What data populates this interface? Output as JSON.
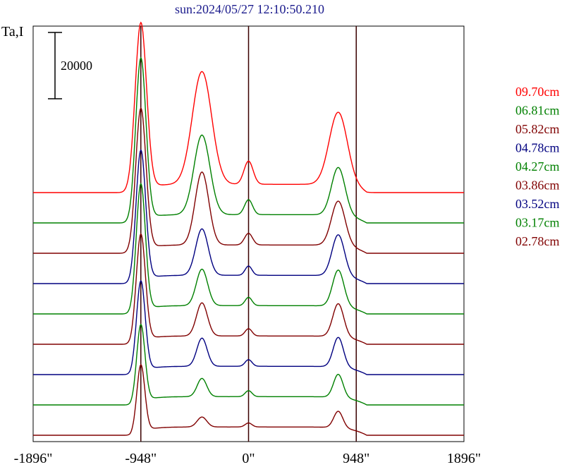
{
  "chart_data": {
    "type": "line",
    "title": "sun:2024/05/27 12:10:50.210",
    "ylabel": "Ta,I",
    "scale_bar": {
      "value": 20000,
      "label": "20000"
    },
    "x_ticks": [
      {
        "value": -1896,
        "label": "-1896\""
      },
      {
        "value": -948,
        "label": "-948\""
      },
      {
        "value": 0,
        "label": "0\""
      },
      {
        "value": 948,
        "label": "948\""
      },
      {
        "value": 1896,
        "label": "1896\""
      }
    ],
    "xlim": [
      -1896,
      1896
    ],
    "vertical_lines": [
      -948,
      0,
      948
    ],
    "legend_placement": "right",
    "series": [
      {
        "name": "09.70cm",
        "color": "#ff0000",
        "baseline": 0,
        "peaks": [
          [
            -948,
            50000,
            50
          ],
          [
            -410,
            34000,
            85
          ],
          [
            0,
            7000,
            40
          ],
          [
            790,
            22000,
            80
          ]
        ]
      },
      {
        "name": "06.81cm",
        "color": "#008000",
        "baseline": 0,
        "peaks": [
          [
            -948,
            48500,
            45
          ],
          [
            -410,
            24000,
            70
          ],
          [
            0,
            4500,
            35
          ],
          [
            790,
            14500,
            60
          ]
        ]
      },
      {
        "name": "05.82cm",
        "color": "#800000",
        "baseline": 0,
        "peaks": [
          [
            -948,
            42500,
            45
          ],
          [
            -410,
            22000,
            60
          ],
          [
            0,
            3500,
            35
          ],
          [
            790,
            13500,
            60
          ]
        ]
      },
      {
        "name": "04.78cm",
        "color": "#000080",
        "baseline": 0,
        "peaks": [
          [
            -948,
            39000,
            42
          ],
          [
            -410,
            14000,
            55
          ],
          [
            0,
            2800,
            30
          ],
          [
            790,
            12500,
            55
          ]
        ]
      },
      {
        "name": "04.27cm",
        "color": "#008000",
        "baseline": 0,
        "peaks": [
          [
            -948,
            38000,
            40
          ],
          [
            -410,
            11000,
            50
          ],
          [
            0,
            2500,
            30
          ],
          [
            790,
            11000,
            50
          ]
        ]
      },
      {
        "name": "03.86cm",
        "color": "#800000",
        "baseline": 0,
        "peaks": [
          [
            -948,
            32000,
            40
          ],
          [
            -410,
            10000,
            48
          ],
          [
            0,
            2200,
            30
          ],
          [
            790,
            10000,
            48
          ]
        ]
      },
      {
        "name": "03.52cm",
        "color": "#000080",
        "baseline": 0,
        "peaks": [
          [
            -948,
            27000,
            38
          ],
          [
            -410,
            8500,
            45
          ],
          [
            0,
            2000,
            30
          ],
          [
            790,
            9000,
            45
          ]
        ]
      },
      {
        "name": "03.17cm",
        "color": "#008000",
        "baseline": 0,
        "peaks": [
          [
            -948,
            23000,
            36
          ],
          [
            -410,
            5500,
            42
          ],
          [
            0,
            1800,
            30
          ],
          [
            790,
            7000,
            42
          ]
        ]
      },
      {
        "name": "02.78cm",
        "color": "#800000",
        "baseline": 0,
        "peaks": [
          [
            -948,
            20000,
            35
          ],
          [
            -410,
            3000,
            42
          ],
          [
            0,
            1200,
            30
          ],
          [
            790,
            5000,
            40
          ]
        ]
      }
    ]
  }
}
